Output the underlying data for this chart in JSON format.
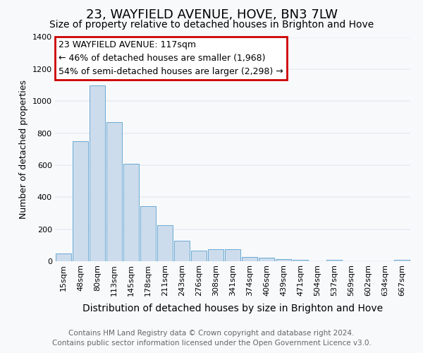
{
  "title": "23, WAYFIELD AVENUE, HOVE, BN3 7LW",
  "subtitle": "Size of property relative to detached houses in Brighton and Hove",
  "xlabel": "Distribution of detached houses by size in Brighton and Hove",
  "ylabel": "Number of detached properties",
  "categories": [
    "15sqm",
    "48sqm",
    "80sqm",
    "113sqm",
    "145sqm",
    "178sqm",
    "211sqm",
    "243sqm",
    "276sqm",
    "308sqm",
    "341sqm",
    "374sqm",
    "406sqm",
    "439sqm",
    "471sqm",
    "504sqm",
    "537sqm",
    "569sqm",
    "602sqm",
    "634sqm",
    "667sqm"
  ],
  "values": [
    50,
    750,
    1100,
    870,
    610,
    345,
    225,
    130,
    65,
    75,
    75,
    25,
    20,
    15,
    10,
    0,
    10,
    0,
    0,
    0,
    10
  ],
  "bar_color": "#ccdcec",
  "bar_edge_color": "#6aaad4",
  "annotation_box_facecolor": "#ffffff",
  "annotation_border_color": "#cc0000",
  "annotation_text_line1": "23 WAYFIELD AVENUE: 117sqm",
  "annotation_text_line2": "← 46% of detached houses are smaller (1,968)",
  "annotation_text_line3": "54% of semi-detached houses are larger (2,298) →",
  "footer_line1": "Contains HM Land Registry data © Crown copyright and database right 2024.",
  "footer_line2": "Contains public sector information licensed under the Open Government Licence v3.0.",
  "ylim": [
    0,
    1400
  ],
  "background_color": "#f8f9fb",
  "plot_background_color": "#f8f9fb",
  "grid_color": "#e8eef4",
  "title_fontsize": 13,
  "subtitle_fontsize": 10,
  "tick_fontsize": 8,
  "ylabel_fontsize": 9,
  "xlabel_fontsize": 10,
  "annotation_fontsize": 9,
  "footer_fontsize": 7.5
}
